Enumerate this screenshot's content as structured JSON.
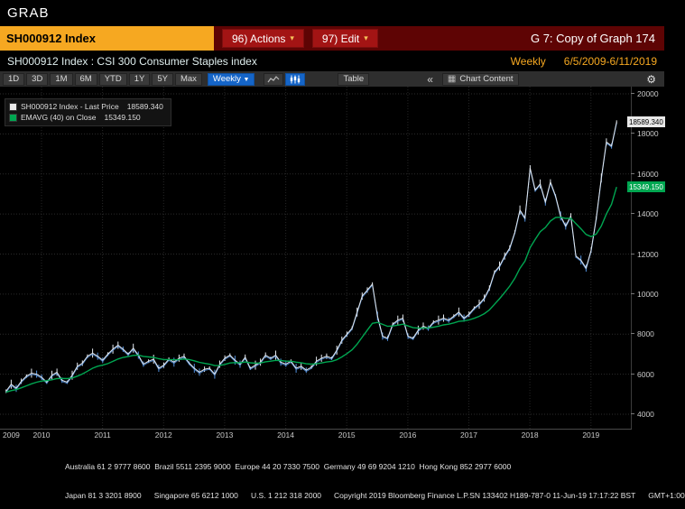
{
  "window": {
    "grab_label": "GRAB"
  },
  "title_bar": {
    "ticker": "SH000912 Index",
    "actions_button": "96) Actions",
    "edit_button": "97) Edit",
    "dropdown_arrow": "▾",
    "graph_title": "G 7: Copy of Graph 174"
  },
  "info_bar": {
    "description": "SH000912 Index : CSI 300 Consumer Staples index",
    "interval": "Weekly",
    "date_range": "6/5/2009-6/11/2019"
  },
  "toolbar": {
    "range_buttons": [
      "1D",
      "3D",
      "1M",
      "6M",
      "YTD",
      "1Y",
      "5Y",
      "Max"
    ],
    "interval_selector": "Weekly",
    "interval_arrow": "▼",
    "table_button": "Table",
    "collapse_icon": "«",
    "chart_content_button": "Chart Content",
    "grid_icon": "▦",
    "gear_icon": "⚙"
  },
  "legend": {
    "series": [
      {
        "label": "SH000912 Index - Last Price",
        "value": "18589.340",
        "color": "#e8e8e8"
      },
      {
        "label": "EMAVG (40) on Close",
        "value": "15349.150",
        "color": "#00a651"
      }
    ]
  },
  "axis_badges": {
    "last_price": {
      "text": "18589.340",
      "value": 18589.34
    },
    "ema": {
      "text": "15349.150",
      "value": 15349.15
    }
  },
  "chart_data": {
    "type": "line",
    "title": "SH000912 Index : CSI 300 Consumer Staples index",
    "xlabel": "",
    "ylabel": "",
    "xlim": [
      2009.35,
      2019.55
    ],
    "ylim": [
      4000,
      20000
    ],
    "y_ticks": [
      20000,
      18000,
      16000,
      14000,
      12000,
      10000,
      8000,
      6000,
      4000
    ],
    "x_ticks": [
      2009,
      2010,
      2011,
      2012,
      2013,
      2014,
      2015,
      2016,
      2017,
      2018,
      2019
    ],
    "grid": true,
    "legend_position": "top-left",
    "x_start": 2009.42,
    "x_step": 0.083333,
    "series": [
      {
        "name": "SH000912 Index - Last Price",
        "color": "#e4e9ef",
        "down_color": "#5290dd",
        "last_value": 18589.34,
        "values": [
          5150,
          5500,
          5300,
          5650,
          5900,
          6050,
          6000,
          5850,
          5600,
          5950,
          6100,
          5700,
          5600,
          5950,
          6400,
          6550,
          6900,
          7050,
          6900,
          6700,
          7000,
          7250,
          7450,
          7250,
          7000,
          7300,
          6950,
          6500,
          6650,
          6750,
          6300,
          6450,
          6750,
          6600,
          6800,
          6900,
          6550,
          6300,
          6100,
          6250,
          6300,
          6000,
          6500,
          6800,
          6950,
          6700,
          6500,
          6850,
          6300,
          6450,
          6600,
          6950,
          6800,
          6950,
          6600,
          6500,
          6650,
          6300,
          6400,
          6200,
          6350,
          6650,
          6800,
          6900,
          6800,
          7200,
          7700,
          8000,
          8300,
          9100,
          9900,
          10200,
          10500,
          8900,
          7900,
          7800,
          8500,
          8700,
          8800,
          7900,
          7800,
          8200,
          8400,
          8300,
          8600,
          8700,
          8800,
          8700,
          8900,
          9100,
          8800,
          9000,
          9300,
          9500,
          9800,
          10300,
          11100,
          11400,
          11900,
          12300,
          13100,
          14200,
          13800,
          16300,
          15200,
          15500,
          14600,
          15600,
          14900,
          13900,
          13400,
          13900,
          11900,
          11700,
          11300,
          12200,
          13800,
          15800,
          17600,
          17400,
          18589.34
        ]
      },
      {
        "name": "EMAVG (40) on Close",
        "color": "#00a651",
        "last_value": 15349.15,
        "values": [
          5100,
          5180,
          5230,
          5320,
          5420,
          5520,
          5600,
          5660,
          5680,
          5720,
          5780,
          5790,
          5780,
          5810,
          5900,
          6010,
          6150,
          6300,
          6400,
          6450,
          6530,
          6640,
          6760,
          6840,
          6880,
          6940,
          6950,
          6890,
          6860,
          6840,
          6770,
          6730,
          6730,
          6720,
          6730,
          6760,
          6730,
          6670,
          6590,
          6540,
          6500,
          6430,
          6440,
          6490,
          6560,
          6580,
          6570,
          6610,
          6570,
          6550,
          6560,
          6620,
          6650,
          6690,
          6680,
          6650,
          6650,
          6600,
          6570,
          6520,
          6500,
          6520,
          6560,
          6610,
          6640,
          6720,
          6860,
          7030,
          7220,
          7500,
          7850,
          8200,
          8540,
          8590,
          8490,
          8390,
          8410,
          8450,
          8500,
          8410,
          8320,
          8300,
          8310,
          8310,
          8350,
          8400,
          8460,
          8500,
          8560,
          8640,
          8660,
          8710,
          8790,
          8890,
          9020,
          9210,
          9490,
          9770,
          10080,
          10400,
          10790,
          11290,
          11650,
          12320,
          12730,
          13120,
          13330,
          13650,
          13830,
          13840,
          13780,
          13790,
          13520,
          13260,
          12980,
          12870,
          13000,
          13400,
          14000,
          14490,
          15349.15
        ]
      }
    ]
  },
  "footer": {
    "line1": "Australia 61 2 9777 8600  Brazil 5511 2395 9000  Europe 44 20 7330 7500  Germany 49 69 9204 1210  Hong Kong 852 2977 6000",
    "line2": "Japan 81 3 3201 8900      Singapore 65 6212 1000      U.S. 1 212 318 2000",
    "copyright": "Copyright 2019 Bloomberg Finance L.P.",
    "serial": "SN 133402 H189-787-0 11-Jun-19 17:17:22 BST",
    "timezone": "GMT+1:00"
  },
  "colors": {
    "amber": "#f6a821",
    "maroon_bar": "#5e0404",
    "red_button": "#a31414",
    "selected_blue": "#1565c8",
    "price_line": "#e4e9ef",
    "price_down": "#5290dd",
    "ema_green": "#00a651",
    "background": "#000000"
  }
}
